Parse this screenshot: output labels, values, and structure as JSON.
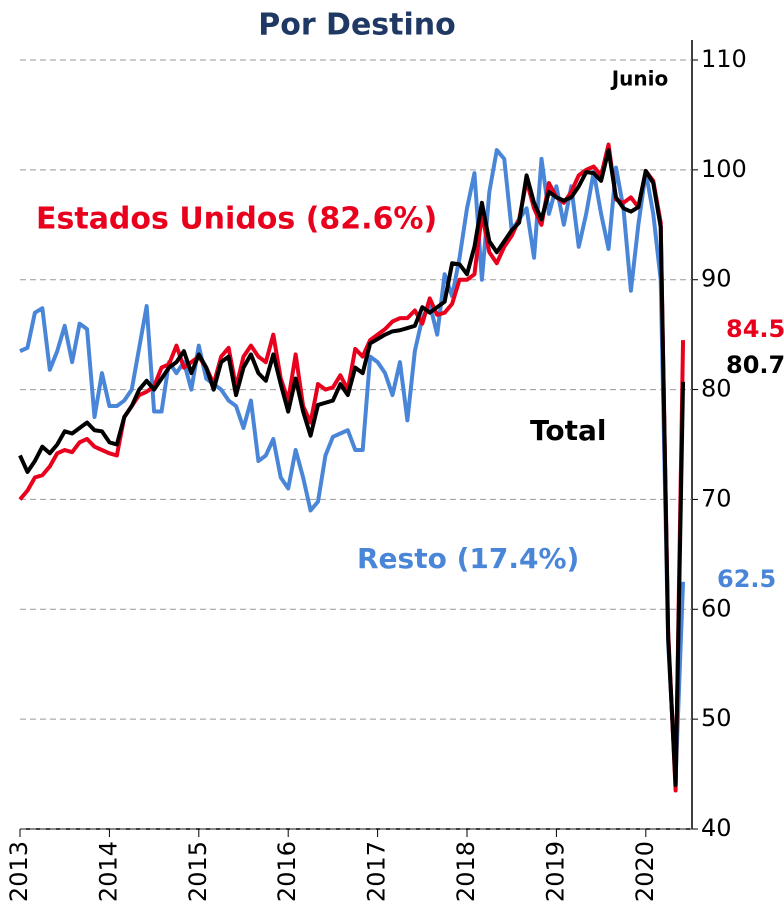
{
  "chart_data": {
    "type": "line",
    "title": "Por Destino",
    "categories": [
      "2013",
      null,
      null,
      null,
      null,
      null,
      null,
      null,
      null,
      null,
      null,
      null,
      "2014",
      null,
      null,
      null,
      null,
      null,
      null,
      null,
      null,
      null,
      null,
      null,
      "2015",
      null,
      null,
      null,
      null,
      null,
      null,
      null,
      null,
      null,
      null,
      null,
      "2016",
      null,
      null,
      null,
      null,
      null,
      null,
      null,
      null,
      null,
      null,
      null,
      "2017",
      null,
      null,
      null,
      null,
      null,
      null,
      null,
      null,
      null,
      null,
      null,
      "2018",
      null,
      null,
      null,
      null,
      null,
      null,
      null,
      null,
      null,
      null,
      null,
      "2019",
      null,
      null,
      null,
      null,
      null,
      null,
      null,
      null,
      null,
      null,
      null,
      "2020",
      null,
      null,
      null,
      null,
      null
    ],
    "series": [
      {
        "name": "Estados Unidos (82.6%)",
        "color": "#e8001c",
        "values": [
          70,
          70.8,
          72,
          72.2,
          73,
          74.2,
          74.5,
          74.3,
          75.2,
          75.5,
          74.8,
          74.5,
          74.2,
          74,
          77.5,
          78.5,
          79.5,
          79.8,
          80.3,
          82,
          82.3,
          84,
          82,
          82.5,
          83,
          82,
          80.5,
          83,
          83.8,
          80.2,
          83,
          84,
          83,
          82.5,
          85,
          81,
          79,
          83.2,
          78.5,
          77,
          80.5,
          80,
          80.2,
          81.3,
          80,
          83.7,
          83,
          84.5,
          85,
          85.5,
          86.2,
          86.5,
          86.5,
          87.2,
          86,
          88.3,
          86.8,
          87,
          87.8,
          90,
          90,
          90.5,
          96,
          92.5,
          91.5,
          93,
          94,
          95.5,
          99,
          96.5,
          95,
          98.8,
          97.5,
          97,
          98,
          99.5,
          100,
          100.3,
          99.5,
          102.3,
          97.3,
          97,
          97.5,
          96.6,
          99.9,
          99,
          95.2,
          58,
          43.5,
          84.5
        ]
      },
      {
        "name": "Total",
        "color": "#000000",
        "values": [
          74,
          72.5,
          73.5,
          74.8,
          74.2,
          75,
          76.2,
          76,
          76.5,
          77,
          76.3,
          76.2,
          75.2,
          75,
          77.5,
          78.5,
          80,
          80.8,
          80,
          81,
          82,
          82.5,
          83.5,
          81.5,
          83.2,
          82,
          80,
          82.5,
          83,
          79.5,
          82,
          83.2,
          81.5,
          80.8,
          83.2,
          80.5,
          78,
          81,
          78,
          75.8,
          78.6,
          78.8,
          79,
          80.5,
          79.5,
          82,
          81.5,
          84.2,
          84.6,
          85,
          85.3,
          85.4,
          85.6,
          85.8,
          87.5,
          87,
          87.5,
          88,
          91.5,
          91.4,
          90.5,
          93,
          97,
          93.5,
          92.5,
          93.5,
          94.5,
          95.2,
          99.5,
          97,
          95.5,
          98,
          97.5,
          97.2,
          97.5,
          98.5,
          99.8,
          99.7,
          99,
          101.8,
          97.5,
          96.5,
          96.2,
          96.6,
          99.9,
          98.8,
          94.8,
          57.5,
          44,
          80.7
        ]
      },
      {
        "name": "Resto (17.4%)",
        "color": "#4a86d8",
        "values": [
          83.5,
          83.8,
          87,
          87.4,
          81.8,
          83.5,
          85.8,
          82.5,
          86,
          85.5,
          77.5,
          81.5,
          78.5,
          78.5,
          79,
          80,
          83.8,
          87.6,
          78,
          78,
          82.5,
          81.5,
          82.5,
          80,
          84,
          81,
          80.5,
          80,
          79,
          78.5,
          76.5,
          79,
          73.5,
          74,
          75.5,
          72,
          71,
          74.5,
          72,
          69,
          69.8,
          74,
          75.7,
          76,
          76.3,
          74.5,
          74.5,
          83,
          82.5,
          81.5,
          79.5,
          82.5,
          77.2,
          83.5,
          86.5,
          87.8,
          85,
          90.5,
          88.5,
          92,
          96.5,
          99.7,
          90,
          98,
          101.8,
          101,
          94.5,
          95.5,
          96.5,
          92,
          101,
          96,
          98.5,
          95,
          98.5,
          93,
          96,
          99.8,
          96,
          92.8,
          100.2,
          96.5,
          89,
          95,
          99.8,
          96,
          90,
          57,
          44.5,
          62.5
        ]
      }
    ],
    "annotations": [
      "Junio"
    ],
    "ylim": [
      40,
      110
    ],
    "yticks": [
      40,
      50,
      60,
      70,
      80,
      90,
      100,
      110
    ],
    "grid": true,
    "y_axis_side": "right"
  }
}
